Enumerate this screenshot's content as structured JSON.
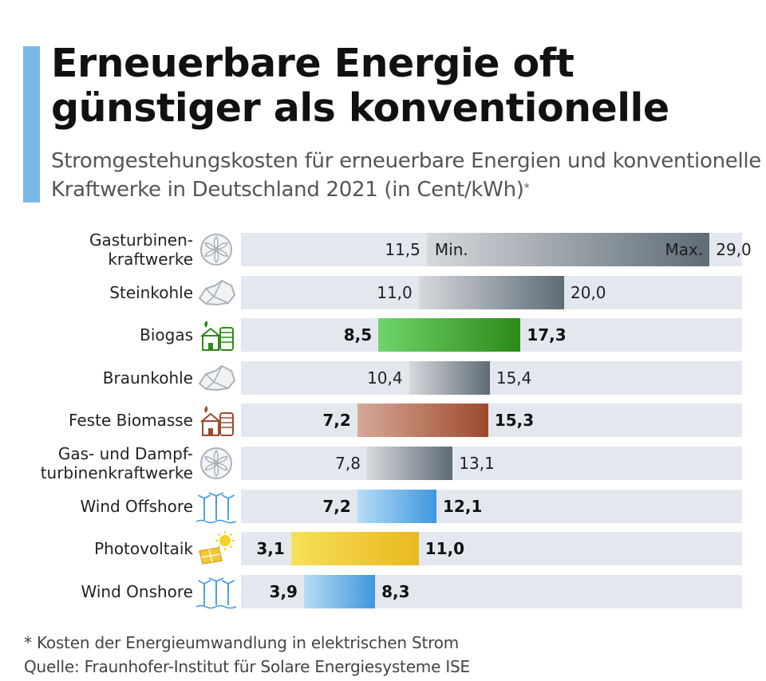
{
  "title": "Erneuerbare Energie oft günstiger als konventionelle",
  "subtitle": "Stromgestehungskosten für erneuerbare Energien und konventionelle Kraftwerke in Deutschland 2021 (in Cent/kWh)",
  "subtitle_mark": "*",
  "footnote": "* Kosten der Energieumwandlung in elektrischen Strom",
  "source": "Quelle: Fraunhofer-Institut für Solare Energiesysteme ISE",
  "min_label": "Min.",
  "max_label": "Max.",
  "colors": {
    "accent": "#7ab8e8",
    "track": "#e3e8ef"
  },
  "chart_data": {
    "type": "bar",
    "orientation": "horizontal",
    "subtype": "range",
    "unit": "Cent/kWh",
    "xlim": [
      0,
      30
    ],
    "rows": [
      {
        "label": "Gasturbinen-kraftwerke",
        "lines": [
          "Gasturbinen-",
          "kraftwerke"
        ],
        "min": 11.5,
        "max": 29.0,
        "min_text": "11,5",
        "max_text": "29,0",
        "icon": "turbine-icon",
        "renewable": false,
        "colors": [
          "#d6d9dc",
          "#5e6b76"
        ]
      },
      {
        "label": "Steinkohle",
        "lines": [
          "Steinkohle"
        ],
        "min": 11.0,
        "max": 20.0,
        "min_text": "11,0",
        "max_text": "20,0",
        "icon": "coal-icon",
        "renewable": false,
        "colors": [
          "#d6d9dc",
          "#5e6b76"
        ]
      },
      {
        "label": "Biogas",
        "lines": [
          "Biogas"
        ],
        "min": 8.5,
        "max": 17.3,
        "min_text": "8,5",
        "max_text": "17,3",
        "icon": "biogas-plant-icon",
        "renewable": true,
        "colors": [
          "#6fd46c",
          "#2c8a17"
        ]
      },
      {
        "label": "Braunkohle",
        "lines": [
          "Braunkohle"
        ],
        "min": 10.4,
        "max": 15.4,
        "min_text": "10,4",
        "max_text": "15,4",
        "icon": "coal-icon",
        "renewable": false,
        "colors": [
          "#d6d9dc",
          "#5e6b76"
        ]
      },
      {
        "label": "Feste Biomasse",
        "lines": [
          "Feste Biomasse"
        ],
        "min": 7.2,
        "max": 15.3,
        "min_text": "7,2",
        "max_text": "15,3",
        "icon": "biomass-plant-icon",
        "renewable": true,
        "colors": [
          "#d8a899",
          "#9c4a2c"
        ]
      },
      {
        "label": "Gas- und Dampf-turbinenkraftwerke",
        "lines": [
          "Gas- und Dampf-",
          "turbinenkraftwerke"
        ],
        "min": 7.8,
        "max": 13.1,
        "min_text": "7,8",
        "max_text": "13,1",
        "icon": "turbine-icon",
        "renewable": false,
        "colors": [
          "#d6d9dc",
          "#5e6b76"
        ]
      },
      {
        "label": "Wind Offshore",
        "lines": [
          "Wind Offshore"
        ],
        "min": 7.2,
        "max": 12.1,
        "min_text": "7,2",
        "max_text": "12,1",
        "icon": "wind-turbines-icon",
        "renewable": true,
        "colors": [
          "#b7dcf5",
          "#3f97de"
        ]
      },
      {
        "label": "Photovoltaik",
        "lines": [
          "Photovoltaik"
        ],
        "min": 3.1,
        "max": 11.0,
        "min_text": "3,1",
        "max_text": "11,0",
        "icon": "solar-panel-icon",
        "renewable": true,
        "colors": [
          "#f6e05a",
          "#e8b91e"
        ]
      },
      {
        "label": "Wind Onshore",
        "lines": [
          "Wind Onshore"
        ],
        "min": 3.9,
        "max": 8.3,
        "min_text": "3,9",
        "max_text": "8,3",
        "icon": "wind-turbines-icon",
        "renewable": true,
        "colors": [
          "#b7dcf5",
          "#3f97de"
        ]
      }
    ]
  }
}
